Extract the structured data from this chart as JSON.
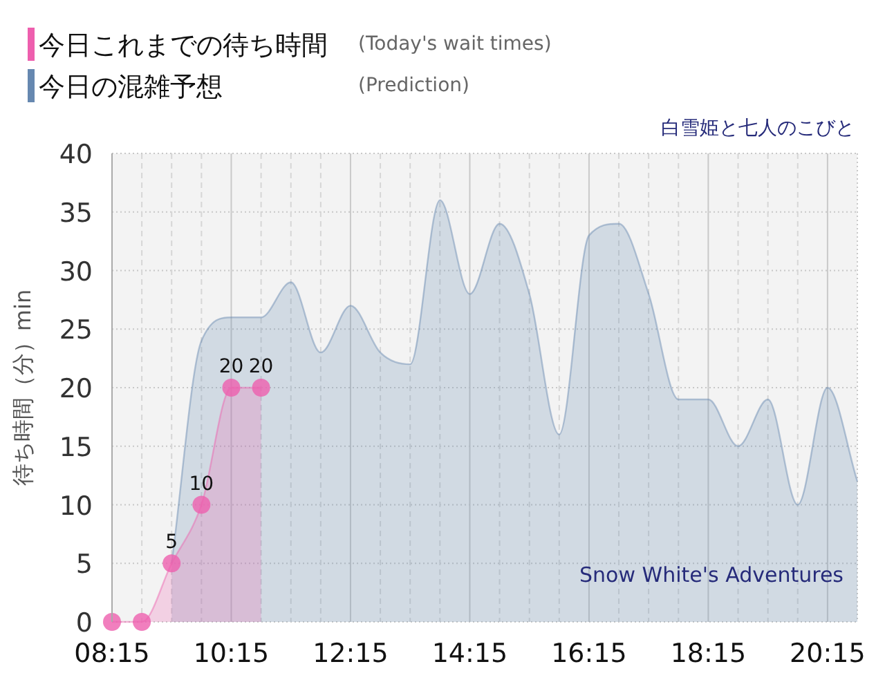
{
  "chart_data": {
    "type": "area",
    "title": "白雪姫と七人のこびと",
    "subtitle": "Snow White's Adventures",
    "ylabel": "待ち時間（分）min",
    "annotations": [
      "(Today's wait times)",
      "(Prediction)"
    ],
    "xlim": [
      8.25,
      20.75
    ],
    "ylim": [
      0,
      40
    ],
    "xticks": [
      {
        "value": 8.25,
        "label": "08:15"
      },
      {
        "value": 8.75,
        "label": null
      },
      {
        "value": 9.25,
        "label": null
      },
      {
        "value": 9.75,
        "label": null
      },
      {
        "value": 10.25,
        "label": "10:15"
      },
      {
        "value": 10.75,
        "label": null
      },
      {
        "value": 11.25,
        "label": null
      },
      {
        "value": 11.75,
        "label": null
      },
      {
        "value": 12.25,
        "label": "12:15"
      },
      {
        "value": 12.75,
        "label": null
      },
      {
        "value": 13.25,
        "label": null
      },
      {
        "value": 13.75,
        "label": null
      },
      {
        "value": 14.25,
        "label": "14:15"
      },
      {
        "value": 14.75,
        "label": null
      },
      {
        "value": 15.25,
        "label": null
      },
      {
        "value": 15.75,
        "label": null
      },
      {
        "value": 16.25,
        "label": "16:15"
      },
      {
        "value": 16.75,
        "label": null
      },
      {
        "value": 17.25,
        "label": null
      },
      {
        "value": 17.75,
        "label": null
      },
      {
        "value": 18.25,
        "label": "18:15"
      },
      {
        "value": 18.75,
        "label": null
      },
      {
        "value": 19.25,
        "label": null
      },
      {
        "value": 19.75,
        "label": null
      },
      {
        "value": 20.25,
        "label": "20:15"
      }
    ],
    "yticks": [
      0,
      5,
      10,
      15,
      20,
      25,
      30,
      35,
      40
    ],
    "grid": true,
    "legend": "top left",
    "series": [
      {
        "name": "今日これまでの待ち時間",
        "color": "#ee5fae",
        "marker": "circle",
        "x": [
          8.25,
          8.75,
          9.25,
          9.75,
          10.25,
          10.75
        ],
        "values": [
          0,
          0,
          5,
          10,
          20,
          20
        ],
        "value_labels": [
          null,
          null,
          "5",
          "10",
          "20",
          "20"
        ]
      },
      {
        "name": "今日の混雑予想",
        "color": "#6688b0",
        "marker": "none",
        "x": [
          9.25,
          9.75,
          10.25,
          10.75,
          11.25,
          11.75,
          12.25,
          12.75,
          13.25,
          13.75,
          14.25,
          14.75,
          15.25,
          15.75,
          16.25,
          16.75,
          17.25,
          17.75,
          18.25,
          18.75,
          19.25,
          19.75,
          20.25,
          20.75
        ],
        "values": [
          5,
          24,
          26,
          26,
          29,
          23,
          27,
          23,
          22,
          36,
          28,
          34,
          28,
          16,
          33,
          34,
          28,
          19,
          19,
          15,
          19,
          10,
          20,
          12
        ]
      }
    ]
  }
}
